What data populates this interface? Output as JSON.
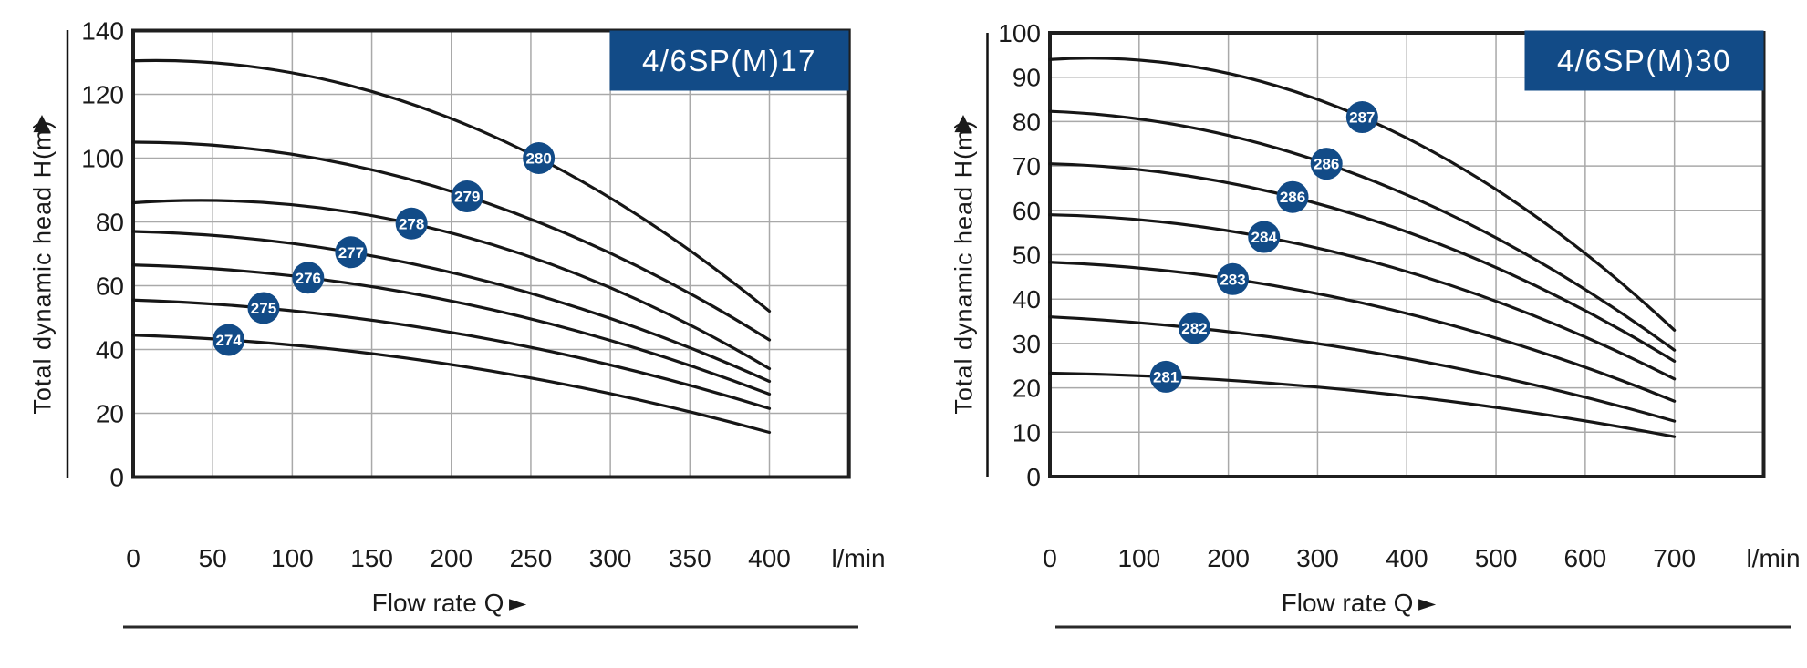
{
  "page": {
    "background": "#ffffff"
  },
  "colors": {
    "navy": "#124b87",
    "curve": "#161616",
    "grid": "#a9a9a9",
    "border": "#1f1f1f",
    "text": "#1a1a1a",
    "badge_text": "#ffffff"
  },
  "icons": {
    "y_axis_arrow": "▲",
    "x_axis_arrow": "►"
  },
  "chart_data": [
    {
      "type": "line",
      "title": "4/6SP(M)17",
      "ylabel": "Total dynamic head H(m)",
      "xlabel": "Flow rate Q",
      "x_unit": "l/min",
      "xlim": [
        0,
        450
      ],
      "x_ticks": [
        0,
        50,
        100,
        150,
        200,
        250,
        300,
        350,
        400
      ],
      "ylim": [
        0,
        140
      ],
      "y_ticks": [
        0,
        20,
        40,
        60,
        80,
        100,
        120,
        140
      ],
      "grid": true,
      "legend_position": "none",
      "series": [
        {
          "name": "274",
          "start": [
            0,
            44.5
          ],
          "badge_point": [
            60,
            43
          ],
          "end": [
            400,
            14
          ]
        },
        {
          "name": "275",
          "start": [
            0,
            55.5
          ],
          "badge_point": [
            82,
            53
          ],
          "end": [
            400,
            21.5
          ]
        },
        {
          "name": "276",
          "start": [
            0,
            66.5
          ],
          "badge_point": [
            110,
            62.5
          ],
          "end": [
            400,
            26
          ]
        },
        {
          "name": "277",
          "start": [
            0,
            77
          ],
          "badge_point": [
            137,
            70.5
          ],
          "end": [
            400,
            30
          ]
        },
        {
          "name": "278",
          "start": [
            0,
            86
          ],
          "badge_point": [
            175,
            79.5
          ],
          "end": [
            400,
            34
          ]
        },
        {
          "name": "279",
          "start": [
            0,
            105
          ],
          "badge_point": [
            210,
            88
          ],
          "end": [
            400,
            43
          ]
        },
        {
          "name": "280",
          "start": [
            0,
            130.5
          ],
          "badge_point": [
            255,
            100
          ],
          "end": [
            400,
            52
          ]
        }
      ]
    },
    {
      "type": "line",
      "title": "4/6SP(M)30",
      "ylabel": "Total dynamic head H(m)",
      "xlabel": "Flow rate Q",
      "x_unit": "l/min",
      "xlim": [
        0,
        800
      ],
      "x_ticks": [
        0,
        100,
        200,
        300,
        400,
        500,
        600,
        700
      ],
      "ylim": [
        0,
        100
      ],
      "y_ticks": [
        0,
        10,
        20,
        30,
        40,
        50,
        60,
        70,
        80,
        90,
        100
      ],
      "grid": true,
      "legend_position": "none",
      "series": [
        {
          "name": "281",
          "start": [
            0,
            23.3
          ],
          "badge_point": [
            130,
            22.5
          ],
          "end": [
            700,
            9
          ]
        },
        {
          "name": "282",
          "start": [
            0,
            36
          ],
          "badge_point": [
            162,
            33.5
          ],
          "end": [
            700,
            12.5
          ]
        },
        {
          "name": "283",
          "start": [
            0,
            48.3
          ],
          "badge_point": [
            205,
            44.5
          ],
          "end": [
            700,
            17
          ]
        },
        {
          "name": "284",
          "start": [
            0,
            59
          ],
          "badge_point": [
            240,
            54
          ],
          "end": [
            700,
            22
          ]
        },
        {
          "name": "286",
          "start": [
            0,
            70.5
          ],
          "badge_point": [
            272,
            63
          ],
          "end": [
            700,
            26
          ]
        },
        {
          "name": "286",
          "start": [
            0,
            82.3
          ],
          "badge_point": [
            310,
            70.5
          ],
          "end": [
            700,
            28.5
          ]
        },
        {
          "name": "287",
          "start": [
            0,
            94
          ],
          "badge_point": [
            350,
            81
          ],
          "end": [
            700,
            33
          ]
        }
      ]
    }
  ]
}
